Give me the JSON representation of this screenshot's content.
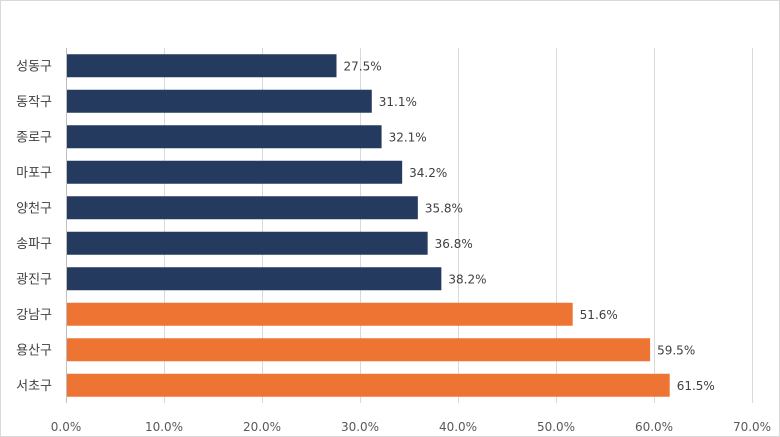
{
  "chart_data": {
    "type": "bar",
    "orientation": "horizontal",
    "title": "",
    "xlabel": "",
    "ylabel": "",
    "categories": [
      "성동구",
      "동작구",
      "종로구",
      "마포구",
      "양천구",
      "송파구",
      "광진구",
      "강남구",
      "용산구",
      "서초구"
    ],
    "values": [
      27.5,
      31.1,
      32.1,
      34.2,
      35.8,
      36.8,
      38.2,
      51.6,
      59.5,
      61.5
    ],
    "value_labels": [
      "27.5%",
      "31.1%",
      "32.1%",
      "34.2%",
      "35.8%",
      "36.8%",
      "38.2%",
      "51.6%",
      "59.5%",
      "61.5%"
    ],
    "bar_colors": [
      "#243a5e",
      "#243a5e",
      "#243a5e",
      "#243a5e",
      "#243a5e",
      "#243a5e",
      "#243a5e",
      "#ed7433",
      "#ed7433",
      "#ed7433"
    ],
    "xlim": [
      0,
      70
    ],
    "xticks": [
      0,
      10,
      20,
      30,
      40,
      50,
      60,
      70
    ],
    "xtick_labels": [
      "0.0%",
      "10.0%",
      "20.0%",
      "30.0%",
      "40.0%",
      "50.0%",
      "60.0%",
      "70.0%"
    ],
    "grid": true,
    "legend": "none"
  }
}
